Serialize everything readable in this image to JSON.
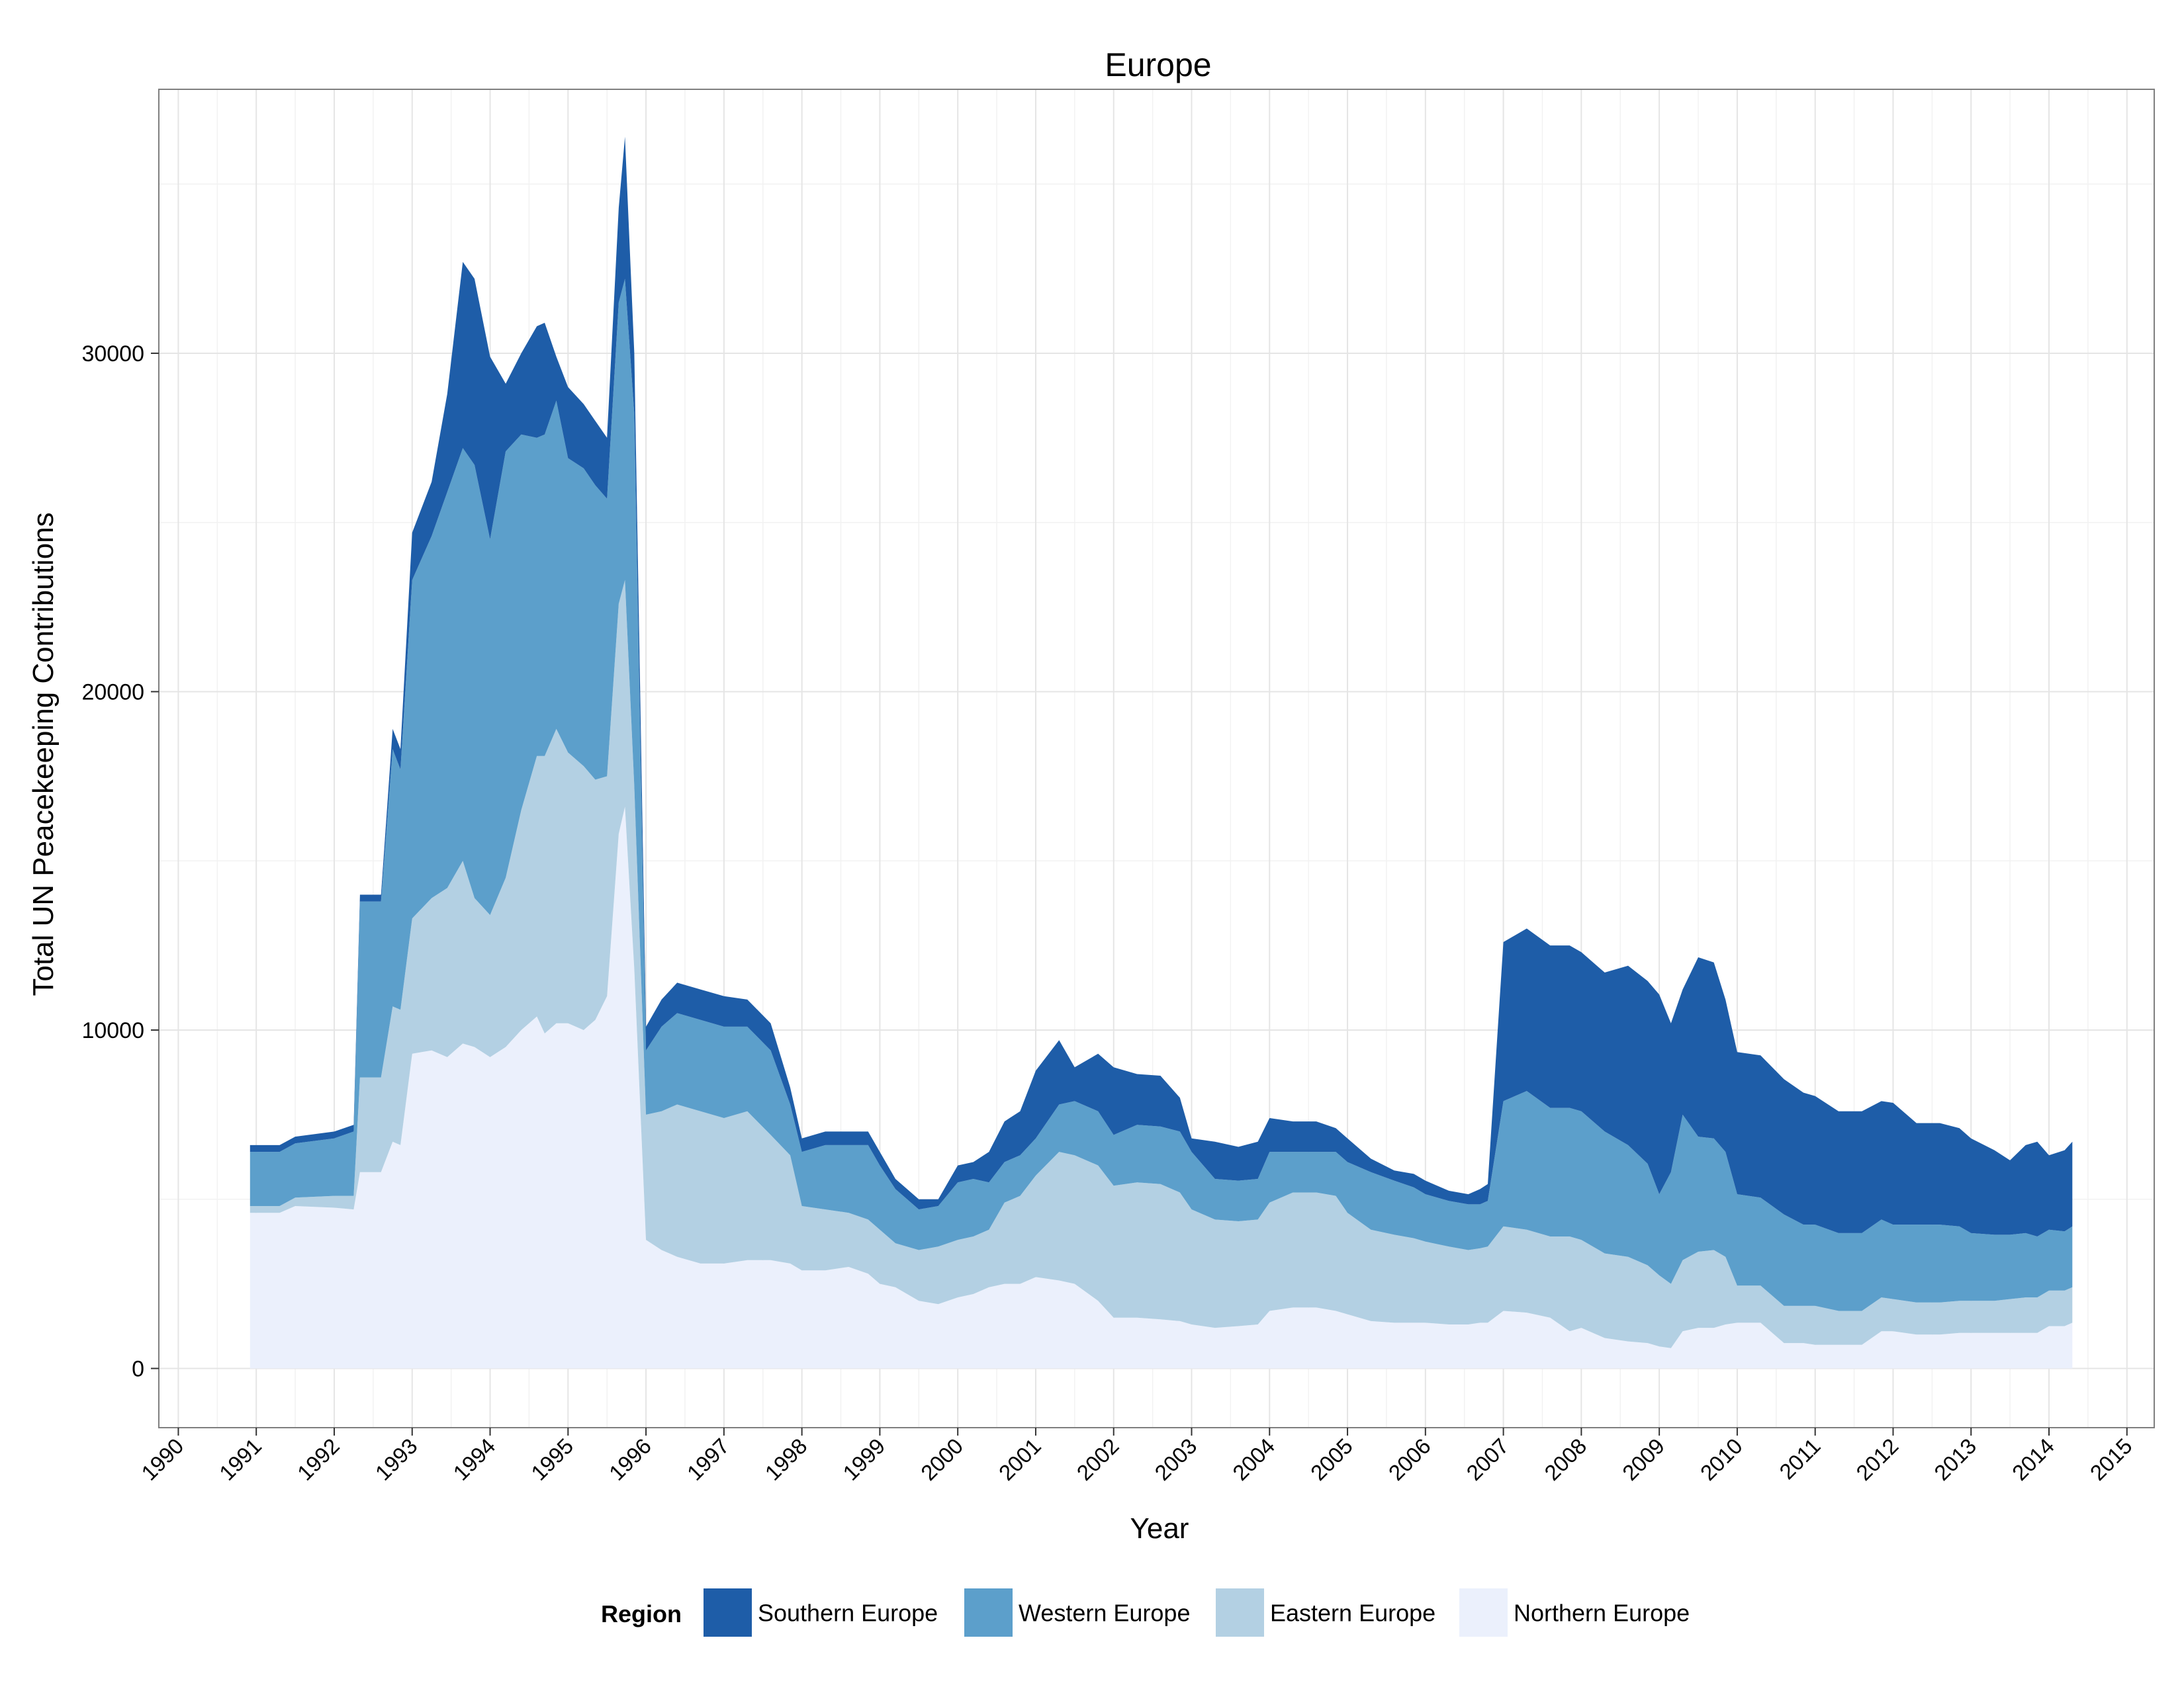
{
  "chart_data": {
    "type": "area",
    "stacked": true,
    "title": "Europe",
    "xlabel": "Year",
    "ylabel": "Total UN Peacekeeping Contributions",
    "xlim": [
      1989.75,
      2015.35
    ],
    "ylim": [
      -1750,
      37800
    ],
    "x_ticks": [
      1990,
      1991,
      1992,
      1993,
      1994,
      1995,
      1996,
      1997,
      1998,
      1999,
      2000,
      2001,
      2002,
      2003,
      2004,
      2005,
      2006,
      2007,
      2008,
      2009,
      2010,
      2011,
      2012,
      2013,
      2014,
      2015
    ],
    "x_tick_labels": [
      "1990",
      "1991",
      "1992",
      "1993",
      "1994",
      "1995",
      "1996",
      "1997",
      "1998",
      "1999",
      "2000",
      "2001",
      "2002",
      "2003",
      "2004",
      "2005",
      "2006",
      "2007",
      "2008",
      "2009",
      "2010",
      "2011",
      "2012",
      "2013",
      "2014",
      "2015"
    ],
    "y_ticks": [
      0,
      10000,
      20000,
      30000
    ],
    "y_tick_labels": [
      "0",
      "10000",
      "20000",
      "30000"
    ],
    "grid": true,
    "legend": {
      "title": "Region",
      "position": "bottom",
      "entries": [
        "Southern Europe",
        "Western Europe",
        "Eastern Europe",
        "Northern Europe"
      ]
    },
    "x": [
      1990.92,
      1991.3,
      1991.5,
      1992.0,
      1992.25,
      1992.33,
      1992.6,
      1992.75,
      1992.85,
      1993.0,
      1993.25,
      1993.45,
      1993.65,
      1993.8,
      1994.0,
      1994.2,
      1994.4,
      1994.6,
      1994.7,
      1994.85,
      1995.0,
      1995.2,
      1995.35,
      1995.5,
      1995.65,
      1995.73,
      1995.85,
      1996.0,
      1996.2,
      1996.4,
      1996.7,
      1997.0,
      1997.3,
      1997.6,
      1997.85,
      1998.0,
      1998.3,
      1998.6,
      1998.85,
      1999.0,
      1999.2,
      1999.5,
      1999.75,
      2000.0,
      2000.2,
      2000.4,
      2000.6,
      2000.8,
      2001.0,
      2001.3,
      2001.5,
      2001.8,
      2002.0,
      2002.3,
      2002.6,
      2002.85,
      2003.0,
      2003.3,
      2003.6,
      2003.85,
      2004.0,
      2004.3,
      2004.6,
      2004.85,
      2005.0,
      2005.3,
      2005.6,
      2005.85,
      2006.0,
      2006.3,
      2006.55,
      2006.7,
      2006.8,
      2007.0,
      2007.3,
      2007.6,
      2007.85,
      2008.0,
      2008.3,
      2008.6,
      2008.85,
      2009.0,
      2009.15,
      2009.3,
      2009.5,
      2009.7,
      2009.85,
      2010.0,
      2010.3,
      2010.6,
      2010.85,
      2011.0,
      2011.3,
      2011.6,
      2011.85,
      2012.0,
      2012.3,
      2012.6,
      2012.85,
      2013.0,
      2013.3,
      2013.5,
      2013.7,
      2013.85,
      2014.0,
      2014.2,
      2014.3
    ],
    "series": [
      {
        "name": "Northern Europe",
        "color": "#ebf0fc",
        "values": [
          4600,
          4600,
          4800,
          4750,
          4700,
          5800,
          5800,
          6700,
          6600,
          9300,
          9400,
          9200,
          9600,
          9500,
          9200,
          9500,
          10000,
          10400,
          9900,
          10200,
          10200,
          10000,
          10300,
          11000,
          15800,
          16600,
          11800,
          3800,
          3500,
          3300,
          3100,
          3100,
          3200,
          3200,
          3100,
          2900,
          2900,
          3000,
          2800,
          2500,
          2400,
          2000,
          1900,
          2100,
          2200,
          2400,
          2500,
          2500,
          2700,
          2600,
          2500,
          2000,
          1500,
          1500,
          1450,
          1400,
          1300,
          1200,
          1250,
          1300,
          1700,
          1800,
          1800,
          1700,
          1600,
          1400,
          1350,
          1350,
          1350,
          1300,
          1300,
          1350,
          1350,
          1700,
          1650,
          1500,
          1100,
          1200,
          900,
          800,
          750,
          650,
          600,
          1100,
          1200,
          1200,
          1300,
          1350,
          1350,
          750,
          750,
          700,
          700,
          700,
          1100,
          1100,
          1000,
          1000,
          1050,
          1050,
          1050,
          1050,
          1050,
          1050,
          1250,
          1250,
          1350
        ]
      },
      {
        "name": "Eastern Europe",
        "color": "#b3d0e3",
        "values": [
          200,
          200,
          250,
          350,
          400,
          2800,
          2800,
          4000,
          4000,
          4000,
          4500,
          5000,
          5400,
          4400,
          4200,
          5000,
          6500,
          7700,
          8200,
          8700,
          8000,
          7800,
          7100,
          6500,
          6800,
          6700,
          5400,
          3700,
          4100,
          4500,
          4500,
          4300,
          4400,
          3700,
          3200,
          1900,
          1800,
          1600,
          1600,
          1600,
          1300,
          1500,
          1700,
          1700,
          1700,
          1700,
          2400,
          2600,
          3000,
          3800,
          3800,
          4000,
          3900,
          4000,
          4000,
          3800,
          3400,
          3200,
          3100,
          3100,
          3200,
          3400,
          3400,
          3400,
          3000,
          2700,
          2600,
          2500,
          2400,
          2300,
          2200,
          2200,
          2250,
          2500,
          2450,
          2400,
          2800,
          2600,
          2500,
          2500,
          2300,
          2100,
          1900,
          2100,
          2250,
          2300,
          2000,
          1100,
          1100,
          1100,
          1100,
          1150,
          1000,
          1000,
          1000,
          950,
          950,
          950,
          950,
          950,
          950,
          1000,
          1050,
          1050,
          1050,
          1050,
          1050
        ]
      },
      {
        "name": "Western Europe",
        "color": "#5c9fcb",
        "values": [
          1600,
          1600,
          1600,
          1700,
          1900,
          5200,
          5200,
          7600,
          7100,
          10000,
          10700,
          11700,
          12200,
          12800,
          11100,
          12600,
          11100,
          9400,
          9500,
          9700,
          8700,
          8800,
          8700,
          8200,
          8900,
          8900,
          11000,
          1900,
          2500,
          2700,
          2700,
          2700,
          2500,
          2500,
          1500,
          1600,
          1900,
          2000,
          2200,
          1900,
          1600,
          1200,
          1200,
          1700,
          1700,
          1400,
          1200,
          1200,
          1100,
          1400,
          1600,
          1600,
          1500,
          1700,
          1700,
          1800,
          1700,
          1200,
          1200,
          1200,
          1500,
          1200,
          1200,
          1300,
          1500,
          1700,
          1600,
          1500,
          1400,
          1350,
          1350,
          1300,
          1350,
          3700,
          4100,
          3800,
          3800,
          3800,
          3600,
          3300,
          3000,
          2400,
          3300,
          4300,
          3400,
          3300,
          3100,
          2700,
          2600,
          2700,
          2400,
          2400,
          2300,
          2300,
          2300,
          2200,
          2300,
          2300,
          2200,
          2000,
          1950,
          1900,
          1900,
          1800,
          1800,
          1750,
          1800
        ]
      },
      {
        "name": "Southern Europe",
        "color": "#1e5da8",
        "values": [
          200,
          200,
          200,
          200,
          200,
          200,
          200,
          600,
          600,
          1400,
          1600,
          2900,
          5500,
          5500,
          5400,
          2000,
          2400,
          3300,
          3300,
          1300,
          2100,
          1900,
          1900,
          1800,
          2800,
          4200,
          1800,
          700,
          800,
          900,
          900,
          900,
          800,
          800,
          500,
          400,
          400,
          400,
          400,
          400,
          300,
          300,
          200,
          500,
          500,
          900,
          1200,
          1300,
          2000,
          1900,
          1000,
          1700,
          2000,
          1500,
          1500,
          1000,
          400,
          1100,
          1000,
          1100,
          1000,
          900,
          900,
          700,
          700,
          400,
          300,
          400,
          400,
          300,
          300,
          450,
          500,
          4700,
          4800,
          4800,
          4800,
          4700,
          4700,
          5300,
          5400,
          5900,
          4400,
          3700,
          5300,
          5200,
          4500,
          4200,
          4200,
          4000,
          3900,
          3800,
          3600,
          3600,
          3500,
          3600,
          3000,
          3000,
          2900,
          2800,
          2500,
          2200,
          2600,
          2800,
          2200,
          2400,
          2500
        ]
      }
    ]
  }
}
